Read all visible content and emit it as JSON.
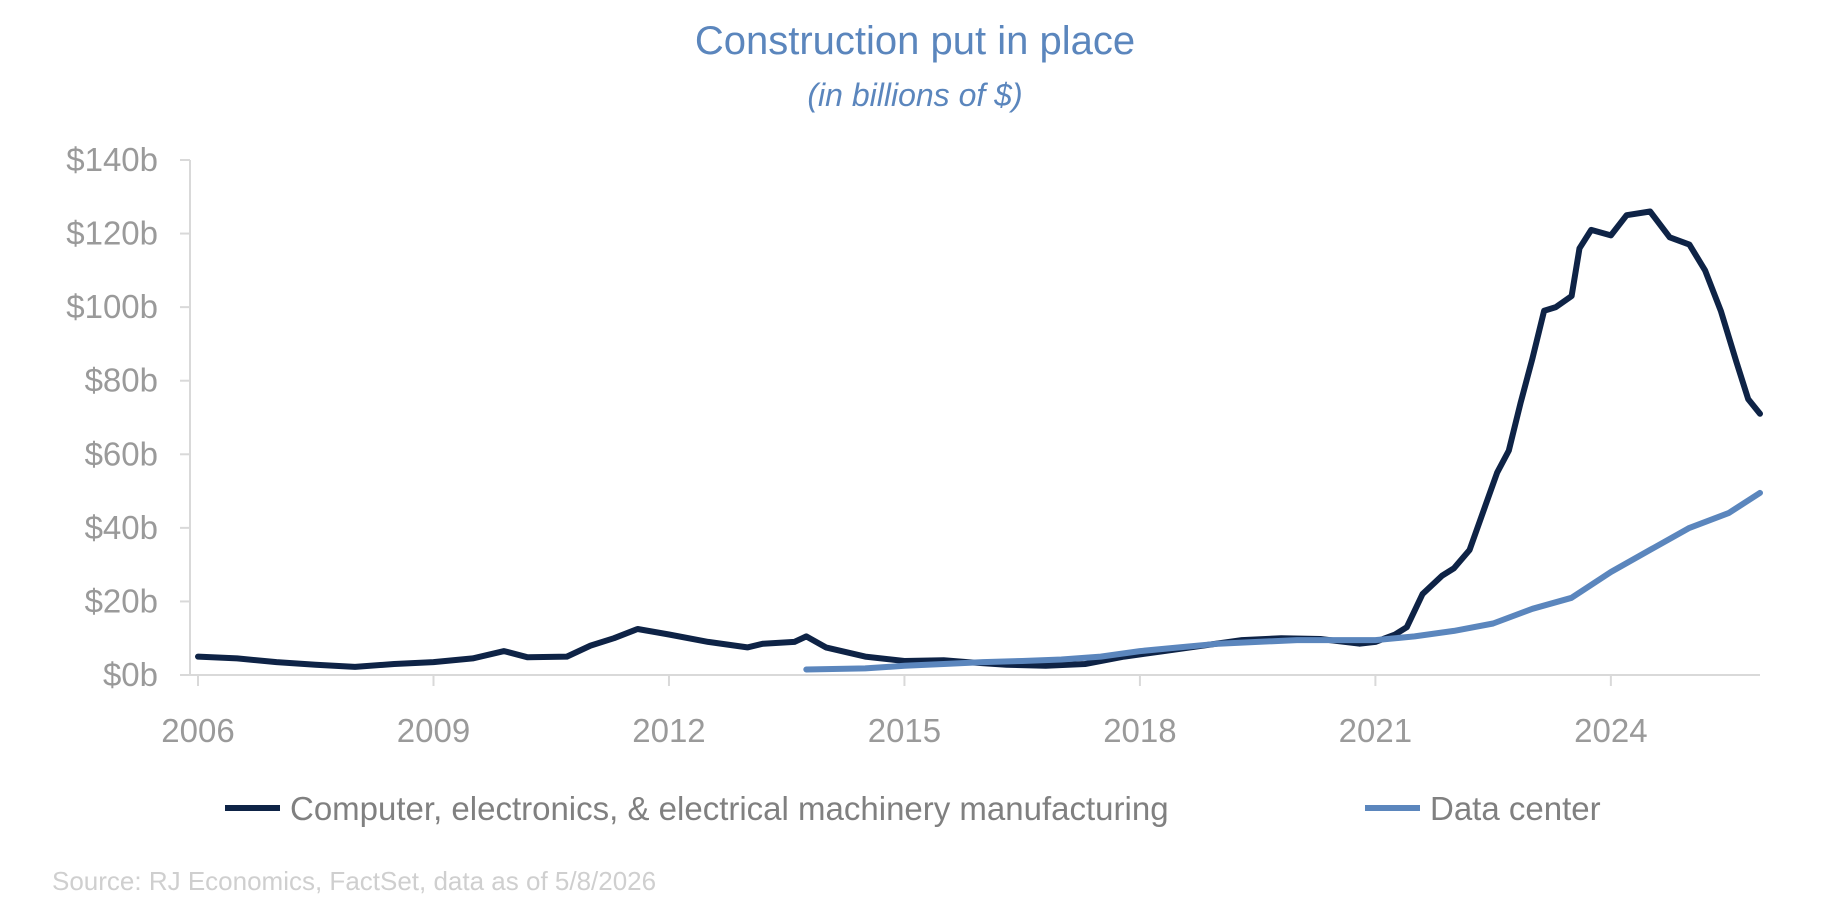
{
  "chart_data": {
    "type": "line",
    "title": "Construction put in place",
    "subtitle": "(in billions of $)",
    "source": "Source: RJ Economics, FactSet, data as of 5/8/2026",
    "x_range": [
      2006.0,
      2025.9
    ],
    "ylim": [
      0,
      140
    ],
    "y_ticks": [
      0,
      20,
      40,
      60,
      80,
      100,
      120,
      140
    ],
    "y_tick_labels": [
      "$0b",
      "$20b",
      "$40b",
      "$60b",
      "$80b",
      "$100b",
      "$120b",
      "$140b"
    ],
    "x_ticks": [
      2006,
      2009,
      2012,
      2015,
      2018,
      2021,
      2024
    ],
    "x_tick_labels": [
      "2006",
      "2009",
      "2012",
      "2015",
      "2018",
      "2021",
      "2024"
    ],
    "grid": false,
    "legend_position": "bottom",
    "series": [
      {
        "name": "Computer, electronics, & electrical machinery manufacturing",
        "color": "#0e2346",
        "points": [
          [
            2006.0,
            5
          ],
          [
            2006.5,
            4.5
          ],
          [
            2007.0,
            3.5
          ],
          [
            2007.5,
            2.8
          ],
          [
            2008.0,
            2.2
          ],
          [
            2008.5,
            3
          ],
          [
            2009.0,
            3.5
          ],
          [
            2009.5,
            4.5
          ],
          [
            2009.9,
            6.5
          ],
          [
            2010.2,
            4.8
          ],
          [
            2010.7,
            5
          ],
          [
            2011.0,
            8
          ],
          [
            2011.3,
            10
          ],
          [
            2011.6,
            12.5
          ],
          [
            2012.0,
            11
          ],
          [
            2012.5,
            9
          ],
          [
            2013.0,
            7.5
          ],
          [
            2013.2,
            8.5
          ],
          [
            2013.6,
            9
          ],
          [
            2013.75,
            10.5
          ],
          [
            2014.0,
            7.5
          ],
          [
            2014.5,
            5
          ],
          [
            2015.0,
            3.8
          ],
          [
            2015.5,
            4
          ],
          [
            2015.8,
            3.5
          ],
          [
            2016.3,
            2.8
          ],
          [
            2016.8,
            2.5
          ],
          [
            2017.3,
            3
          ],
          [
            2017.8,
            5
          ],
          [
            2018.3,
            6.5
          ],
          [
            2018.8,
            8
          ],
          [
            2019.3,
            9.5
          ],
          [
            2019.8,
            10
          ],
          [
            2020.3,
            9.8
          ],
          [
            2020.8,
            8.5
          ],
          [
            2021.0,
            9
          ],
          [
            2021.25,
            11
          ],
          [
            2021.4,
            13
          ],
          [
            2021.6,
            22
          ],
          [
            2021.85,
            27
          ],
          [
            2022.0,
            29
          ],
          [
            2022.2,
            34
          ],
          [
            2022.4,
            46
          ],
          [
            2022.55,
            55
          ],
          [
            2022.7,
            61
          ],
          [
            2022.85,
            74
          ],
          [
            2023.0,
            86
          ],
          [
            2023.15,
            99
          ],
          [
            2023.3,
            100
          ],
          [
            2023.5,
            103
          ],
          [
            2023.6,
            116
          ],
          [
            2023.75,
            121
          ],
          [
            2024.0,
            119.5
          ],
          [
            2024.2,
            125
          ],
          [
            2024.5,
            126
          ],
          [
            2024.75,
            119
          ],
          [
            2025.0,
            117
          ],
          [
            2025.2,
            110
          ],
          [
            2025.4,
            99
          ],
          [
            2025.6,
            85
          ],
          [
            2025.75,
            75
          ],
          [
            2025.9,
            71
          ]
        ]
      },
      {
        "name": "Data center",
        "color": "#5b86bd",
        "points": [
          [
            2013.75,
            1.5
          ],
          [
            2014.5,
            1.8
          ],
          [
            2015.0,
            2.5
          ],
          [
            2015.5,
            3
          ],
          [
            2016.0,
            3.5
          ],
          [
            2016.5,
            3.8
          ],
          [
            2017.0,
            4.2
          ],
          [
            2017.5,
            5
          ],
          [
            2018.0,
            6.5
          ],
          [
            2018.5,
            7.5
          ],
          [
            2019.0,
            8.5
          ],
          [
            2019.5,
            9
          ],
          [
            2020.0,
            9.5
          ],
          [
            2020.5,
            9.5
          ],
          [
            2021.0,
            9.5
          ],
          [
            2021.5,
            10.5
          ],
          [
            2022.0,
            12
          ],
          [
            2022.5,
            14
          ],
          [
            2023.0,
            18
          ],
          [
            2023.5,
            21
          ],
          [
            2024.0,
            28
          ],
          [
            2024.5,
            34
          ],
          [
            2025.0,
            40
          ],
          [
            2025.5,
            44
          ],
          [
            2025.9,
            49.5
          ]
        ]
      }
    ]
  }
}
